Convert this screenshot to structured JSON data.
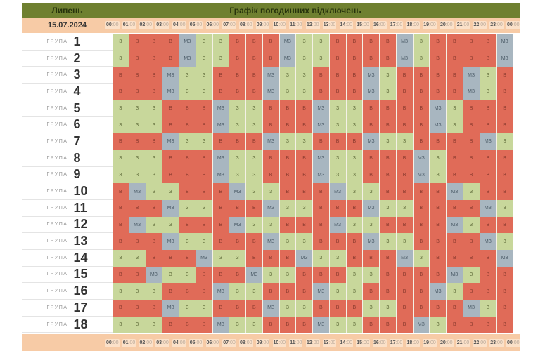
{
  "header": {
    "month": "Липень",
    "title": "Графік погодинних відключень"
  },
  "date": "15.07.2024",
  "colors": {
    "header": "#6f8030",
    "date_row": "#f7cba6",
    "off": "#e06b58",
    "on": "#c8d79b",
    "maybe": "#a8b6c0"
  },
  "hours": [
    {
      "h": "00",
      "m": ":00"
    },
    {
      "h": "01",
      "m": ":00"
    },
    {
      "h": "02",
      "m": ":00"
    },
    {
      "h": "03",
      "m": ":00"
    },
    {
      "h": "04",
      "m": ":00"
    },
    {
      "h": "05",
      "m": ":00"
    },
    {
      "h": "06",
      "m": ":00"
    },
    {
      "h": "07",
      "m": ":00"
    },
    {
      "h": "08",
      "m": ":00"
    },
    {
      "h": "09",
      "m": ":00"
    },
    {
      "h": "10",
      "m": ":00"
    },
    {
      "h": "11",
      "m": ":00"
    },
    {
      "h": "12",
      "m": ":00"
    },
    {
      "h": "13",
      "m": ":00"
    },
    {
      "h": "14",
      "m": ":00"
    },
    {
      "h": "15",
      "m": ":00"
    },
    {
      "h": "16",
      "m": ":00"
    },
    {
      "h": "17",
      "m": ":00"
    },
    {
      "h": "18",
      "m": ":00"
    },
    {
      "h": "19",
      "m": ":00"
    },
    {
      "h": "20",
      "m": ":00"
    },
    {
      "h": "21",
      "m": ":00"
    },
    {
      "h": "22",
      "m": ":00"
    },
    {
      "h": "23",
      "m": ":00"
    },
    {
      "h": "00",
      "m": ":00"
    }
  ],
  "group_word": "ГРУПА",
  "groups": [
    {
      "num": "1",
      "cells": [
        "З",
        "В",
        "В",
        "В",
        "МЗ",
        "З",
        "З",
        "В",
        "В",
        "В",
        "МЗ",
        "З",
        "З",
        "В",
        "В",
        "В",
        "В",
        "МЗ",
        "З",
        "В",
        "В",
        "В",
        "В",
        "МЗ"
      ]
    },
    {
      "num": "2",
      "cells": [
        "З",
        "В",
        "В",
        "В",
        "МЗ",
        "З",
        "З",
        "В",
        "В",
        "В",
        "МЗ",
        "З",
        "З",
        "В",
        "В",
        "В",
        "В",
        "МЗ",
        "З",
        "В",
        "В",
        "В",
        "В",
        "МЗ"
      ]
    },
    {
      "num": "3",
      "cells": [
        "В",
        "В",
        "В",
        "МЗ",
        "З",
        "З",
        "В",
        "В",
        "В",
        "МЗ",
        "З",
        "З",
        "В",
        "В",
        "В",
        "МЗ",
        "З",
        "В",
        "В",
        "В",
        "В",
        "МЗ",
        "З",
        "В"
      ]
    },
    {
      "num": "4",
      "cells": [
        "В",
        "В",
        "В",
        "МЗ",
        "З",
        "З",
        "В",
        "В",
        "В",
        "МЗ",
        "З",
        "З",
        "В",
        "В",
        "В",
        "МЗ",
        "З",
        "В",
        "В",
        "В",
        "В",
        "МЗ",
        "З",
        "В"
      ]
    },
    {
      "num": "5",
      "cells": [
        "З",
        "З",
        "З",
        "В",
        "В",
        "В",
        "МЗ",
        "З",
        "З",
        "В",
        "В",
        "В",
        "МЗ",
        "З",
        "З",
        "В",
        "В",
        "В",
        "В",
        "МЗ",
        "З",
        "В",
        "В",
        "В"
      ]
    },
    {
      "num": "6",
      "cells": [
        "З",
        "З",
        "З",
        "В",
        "В",
        "В",
        "МЗ",
        "З",
        "З",
        "В",
        "В",
        "В",
        "МЗ",
        "З",
        "З",
        "В",
        "В",
        "В",
        "В",
        "МЗ",
        "З",
        "В",
        "В",
        "В"
      ]
    },
    {
      "num": "7",
      "cells": [
        "В",
        "В",
        "В",
        "МЗ",
        "З",
        "З",
        "В",
        "В",
        "В",
        "МЗ",
        "З",
        "З",
        "В",
        "В",
        "В",
        "МЗ",
        "З",
        "З",
        "В",
        "В",
        "В",
        "В",
        "МЗ",
        "З"
      ]
    },
    {
      "num": "8",
      "cells": [
        "З",
        "З",
        "З",
        "В",
        "В",
        "В",
        "МЗ",
        "З",
        "З",
        "В",
        "В",
        "В",
        "МЗ",
        "З",
        "З",
        "В",
        "В",
        "В",
        "МЗ",
        "З",
        "В",
        "В",
        "В",
        "В"
      ]
    },
    {
      "num": "9",
      "cells": [
        "З",
        "З",
        "З",
        "В",
        "В",
        "В",
        "МЗ",
        "З",
        "З",
        "В",
        "В",
        "В",
        "МЗ",
        "З",
        "З",
        "В",
        "В",
        "В",
        "МЗ",
        "З",
        "В",
        "В",
        "В",
        "В"
      ]
    },
    {
      "num": "10",
      "cells": [
        "В",
        "МЗ",
        "З",
        "З",
        "В",
        "В",
        "В",
        "МЗ",
        "З",
        "З",
        "В",
        "В",
        "В",
        "МЗ",
        "З",
        "З",
        "В",
        "В",
        "В",
        "В",
        "МЗ",
        "З",
        "В",
        "В"
      ]
    },
    {
      "num": "11",
      "cells": [
        "В",
        "В",
        "В",
        "МЗ",
        "З",
        "З",
        "В",
        "В",
        "В",
        "МЗ",
        "З",
        "З",
        "В",
        "В",
        "В",
        "МЗ",
        "З",
        "З",
        "В",
        "В",
        "В",
        "В",
        "МЗ",
        "З"
      ]
    },
    {
      "num": "12",
      "cells": [
        "В",
        "МЗ",
        "З",
        "З",
        "В",
        "В",
        "В",
        "МЗ",
        "З",
        "З",
        "В",
        "В",
        "В",
        "МЗ",
        "З",
        "З",
        "В",
        "В",
        "В",
        "В",
        "МЗ",
        "З",
        "В",
        "В"
      ]
    },
    {
      "num": "13",
      "cells": [
        "В",
        "В",
        "В",
        "МЗ",
        "З",
        "З",
        "В",
        "В",
        "В",
        "МЗ",
        "З",
        "З",
        "В",
        "В",
        "В",
        "МЗ",
        "З",
        "З",
        "В",
        "В",
        "В",
        "В",
        "МЗ",
        "З"
      ]
    },
    {
      "num": "14",
      "cells": [
        "З",
        "З",
        "В",
        "В",
        "В",
        "МЗ",
        "З",
        "З",
        "В",
        "В",
        "В",
        "МЗ",
        "З",
        "З",
        "В",
        "В",
        "В",
        "МЗ",
        "З",
        "В",
        "В",
        "В",
        "В",
        "МЗ"
      ]
    },
    {
      "num": "15",
      "cells": [
        "В",
        "В",
        "МЗ",
        "З",
        "З",
        "В",
        "В",
        "В",
        "МЗ",
        "З",
        "З",
        "В",
        "В",
        "В",
        "З",
        "З",
        "В",
        "В",
        "В",
        "В",
        "МЗ",
        "З",
        "В",
        "В"
      ]
    },
    {
      "num": "16",
      "cells": [
        "З",
        "З",
        "З",
        "В",
        "В",
        "В",
        "МЗ",
        "З",
        "З",
        "В",
        "В",
        "В",
        "МЗ",
        "З",
        "З",
        "В",
        "В",
        "В",
        "В",
        "МЗ",
        "З",
        "В",
        "В",
        "В"
      ]
    },
    {
      "num": "17",
      "cells": [
        "В",
        "В",
        "В",
        "МЗ",
        "З",
        "З",
        "В",
        "В",
        "В",
        "МЗ",
        "З",
        "З",
        "В",
        "В",
        "В",
        "З",
        "З",
        "В",
        "В",
        "В",
        "В",
        "МЗ",
        "З",
        "В"
      ]
    },
    {
      "num": "18",
      "cells": [
        "З",
        "З",
        "З",
        "В",
        "В",
        "В",
        "МЗ",
        "З",
        "З",
        "В",
        "В",
        "В",
        "МЗ",
        "З",
        "З",
        "В",
        "В",
        "В",
        "МЗ",
        "З",
        "В",
        "В",
        "В",
        "В"
      ]
    }
  ]
}
